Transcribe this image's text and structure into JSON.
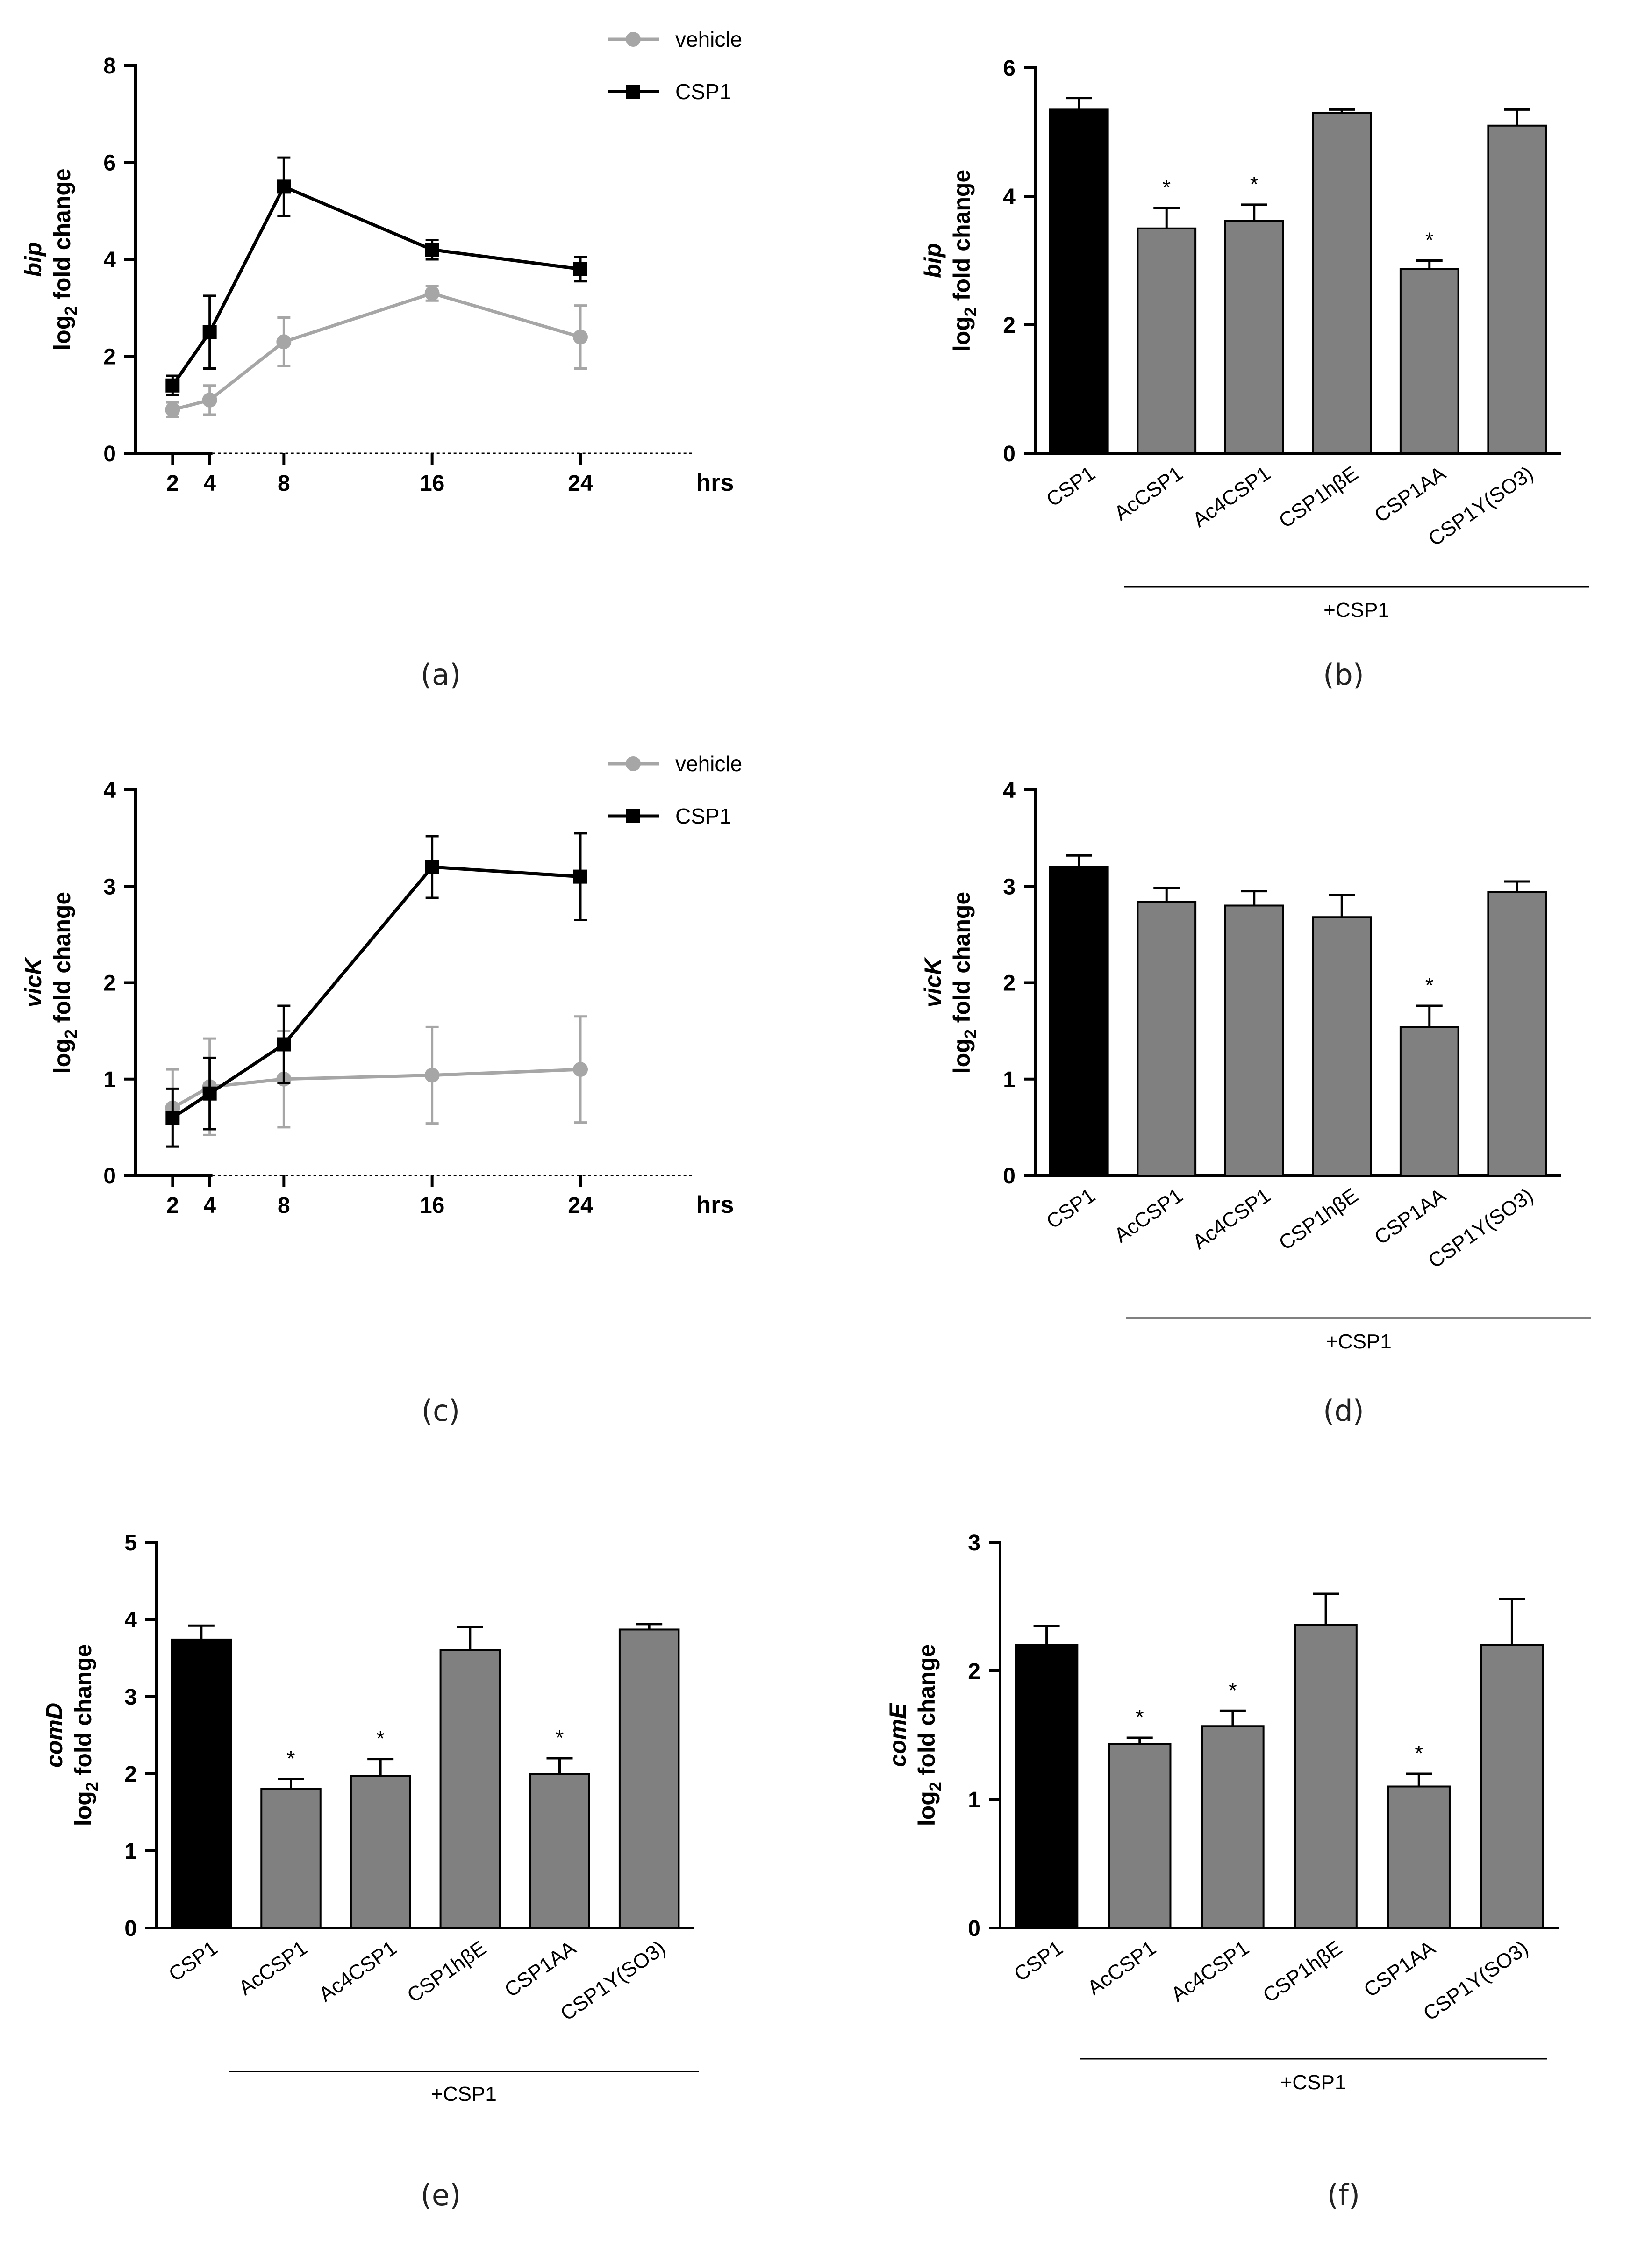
{
  "colors": {
    "black": "#000000",
    "vehicle": "#a6a6a6",
    "bar_grey": "#808080",
    "bar_black": "#000000"
  },
  "chart_data": [
    {
      "id": "a",
      "type": "line",
      "panel_label": "(a)",
      "ylabel_gene": "bip",
      "ylabel": "log",
      "ylabel_sub": "2",
      "ylabel_rest": " fold change",
      "ylim": [
        0,
        8
      ],
      "yticks": [
        0,
        2,
        4,
        6,
        8
      ],
      "ytick_labels": [
        "0",
        "2",
        "4",
        "6",
        "8"
      ],
      "xlim": [
        0,
        30
      ],
      "xticks": [
        2,
        4,
        8,
        16,
        24
      ],
      "xtick_labels": [
        "2",
        "4",
        "8",
        "16",
        "24"
      ],
      "xunit": "hrs",
      "series": [
        {
          "name": "vehicle",
          "marker": "circle",
          "x": [
            2,
            4,
            8,
            16,
            24
          ],
          "y": [
            0.9,
            1.1,
            2.3,
            3.3,
            2.4
          ],
          "err": [
            0.15,
            0.3,
            0.5,
            0.15,
            0.65
          ]
        },
        {
          "name": "CSP1",
          "marker": "square",
          "x": [
            2,
            4,
            8,
            16,
            24
          ],
          "y": [
            1.4,
            2.5,
            5.5,
            4.2,
            3.8
          ],
          "err": [
            0.2,
            0.75,
            0.6,
            0.2,
            0.25
          ]
        }
      ]
    },
    {
      "id": "b",
      "type": "bar",
      "panel_label": "(b)",
      "ylabel_gene": "bip",
      "ylabel": "log",
      "ylabel_sub": "2",
      "ylabel_rest": " fold change",
      "ylim": [
        0,
        6
      ],
      "yticks": [
        0,
        2,
        4,
        6
      ],
      "ytick_labels": [
        "0",
        "2",
        "4",
        "6"
      ],
      "categories": [
        "CSP1",
        "AcCSP1",
        "Ac4CSP1",
        "CSP1hβE",
        "CSP1AA",
        "CSP1Y(SO3)"
      ],
      "values": [
        5.35,
        3.5,
        3.62,
        5.3,
        2.87,
        5.1
      ],
      "errors": [
        0.18,
        0.32,
        0.25,
        0.05,
        0.13,
        0.25
      ],
      "significant": [
        false,
        true,
        true,
        false,
        true,
        false
      ],
      "sig_mark": "*",
      "group_label": "+CSP1"
    },
    {
      "id": "c",
      "type": "line",
      "panel_label": "(c)",
      "ylabel_gene": "vicK",
      "ylabel": "log",
      "ylabel_sub": "2",
      "ylabel_rest": " fold change",
      "ylim": [
        0,
        4
      ],
      "yticks": [
        0,
        1,
        2,
        3,
        4
      ],
      "ytick_labels": [
        "0",
        "1",
        "2",
        "3",
        "4"
      ],
      "xlim": [
        0,
        30
      ],
      "xticks": [
        2,
        4,
        8,
        16,
        24
      ],
      "xtick_labels": [
        "2",
        "4",
        "8",
        "16",
        "24"
      ],
      "xunit": "hrs",
      "series": [
        {
          "name": "vehicle",
          "marker": "circle",
          "x": [
            2,
            4,
            8,
            16,
            24
          ],
          "y": [
            0.7,
            0.92,
            1.0,
            1.04,
            1.1
          ],
          "err": [
            0.4,
            0.5,
            0.5,
            0.5,
            0.55
          ]
        },
        {
          "name": "CSP1",
          "marker": "square",
          "x": [
            2,
            4,
            8,
            16,
            24
          ],
          "y": [
            0.6,
            0.85,
            1.36,
            3.2,
            3.1
          ],
          "err": [
            0.3,
            0.37,
            0.4,
            0.32,
            0.45
          ]
        }
      ]
    },
    {
      "id": "d",
      "type": "bar",
      "panel_label": "(d)",
      "ylabel_gene": "vicK",
      "ylabel": "log",
      "ylabel_sub": "2",
      "ylabel_rest": " fold change",
      "ylim": [
        0,
        4
      ],
      "yticks": [
        0,
        1,
        2,
        3,
        4
      ],
      "ytick_labels": [
        "0",
        "1",
        "2",
        "3",
        "4"
      ],
      "categories": [
        "CSP1",
        "AcCSP1",
        "Ac4CSP1",
        "CSP1hβE",
        "CSP1AA",
        "CSP1Y(SO3)"
      ],
      "values": [
        3.2,
        2.84,
        2.8,
        2.68,
        1.54,
        2.94
      ],
      "errors": [
        0.12,
        0.14,
        0.15,
        0.23,
        0.22,
        0.11
      ],
      "significant": [
        false,
        false,
        false,
        false,
        true,
        false
      ],
      "sig_mark": "*",
      "group_label": "+CSP1"
    },
    {
      "id": "e",
      "type": "bar",
      "panel_label": "(e)",
      "ylabel_gene": "comD",
      "ylabel": "log",
      "ylabel_sub": "2",
      "ylabel_rest": " fold change",
      "ylim": [
        0,
        5
      ],
      "yticks": [
        0,
        1,
        2,
        3,
        4,
        5
      ],
      "ytick_labels": [
        "0",
        "1",
        "2",
        "3",
        "4",
        "5"
      ],
      "categories": [
        "CSP1",
        "AcCSP1",
        "Ac4CSP1",
        "CSP1hβE",
        "CSP1AA",
        "CSP1Y(SO3)"
      ],
      "values": [
        3.74,
        1.8,
        1.97,
        3.6,
        2.0,
        3.87
      ],
      "errors": [
        0.18,
        0.13,
        0.22,
        0.3,
        0.2,
        0.07
      ],
      "significant": [
        false,
        true,
        true,
        false,
        true,
        false
      ],
      "sig_mark": "*",
      "group_label": "+CSP1"
    },
    {
      "id": "f",
      "type": "bar",
      "panel_label": "(f)",
      "ylabel_gene": "comE",
      "ylabel": "log",
      "ylabel_sub": "2",
      "ylabel_rest": " fold change",
      "ylim": [
        0,
        3
      ],
      "yticks": [
        0,
        1,
        2,
        3
      ],
      "ytick_labels": [
        "0",
        "1",
        "2",
        "3"
      ],
      "categories": [
        "CSP1",
        "AcCSP1",
        "Ac4CSP1",
        "CSP1hβE",
        "CSP1AA",
        "CSP1Y(SO3)"
      ],
      "values": [
        2.2,
        1.43,
        1.57,
        2.36,
        1.1,
        2.2
      ],
      "errors": [
        0.15,
        0.05,
        0.12,
        0.24,
        0.1,
        0.36
      ],
      "significant": [
        false,
        true,
        true,
        false,
        true,
        false
      ],
      "sig_mark": "*",
      "group_label": "+CSP1"
    }
  ]
}
